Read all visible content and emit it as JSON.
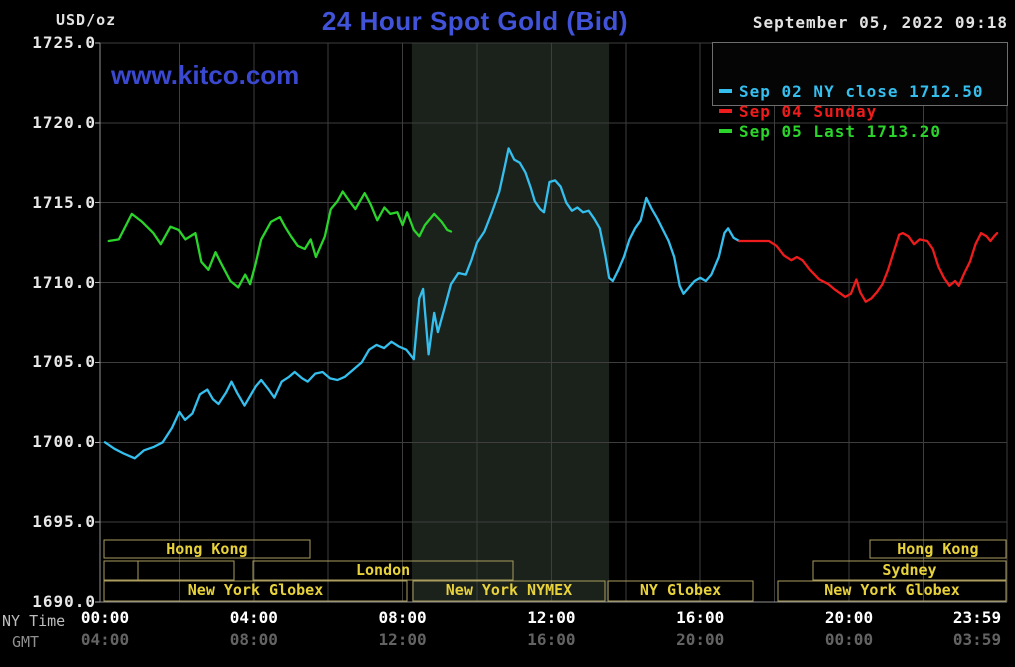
{
  "header": {
    "units_label": "USD/oz",
    "title": "24 Hour Spot Gold (Bid)",
    "watermark": "www.kitco.com",
    "datetime": "September 05, 2022 09:18"
  },
  "axes": {
    "ny_time_label": "NY Time",
    "gmt_label": "GMT"
  },
  "legend": {
    "items": [
      {
        "id": "sep02",
        "label": "Sep 02 NY close 1712.50",
        "color": "#35bfee"
      },
      {
        "id": "sep04",
        "label": "Sep 04 Sunday",
        "color": "#ee1c1c"
      },
      {
        "id": "sep05",
        "label": "Sep 05 Last 1713.20",
        "color": "#2bd42b"
      }
    ]
  },
  "chart_data": {
    "type": "line",
    "title": "24 Hour Spot Gold (Bid)",
    "ylabel": "USD/oz",
    "xlabel": "NY Time / GMT",
    "ylim": [
      1690,
      1725
    ],
    "xlim_hours": [
      0,
      24
    ],
    "grid": true,
    "legend_position": "top-right",
    "y_ticks": [
      1690,
      1695,
      1700,
      1705,
      1710,
      1715,
      1720,
      1725
    ],
    "x_ticks": [
      {
        "h": 0,
        "ny": "00:00",
        "gmt": "04:00"
      },
      {
        "h": 4,
        "ny": "04:00",
        "gmt": "08:00"
      },
      {
        "h": 8,
        "ny": "08:00",
        "gmt": "12:00"
      },
      {
        "h": 12,
        "ny": "12:00",
        "gmt": "16:00"
      },
      {
        "h": 16,
        "ny": "16:00",
        "gmt": "20:00"
      },
      {
        "h": 20,
        "ny": "20:00",
        "gmt": "00:00"
      },
      {
        "h": 23.983,
        "ny": "23:59",
        "gmt": "03:59"
      }
    ],
    "band_hours": [
      8.25,
      13.55
    ],
    "colors": {
      "grid": "#3e3e3e",
      "axis": "#909090",
      "band": "#1b211b",
      "session_border": "#aa9d5e",
      "session_text": "#e8d23c",
      "title_blue": "#4153d9"
    },
    "sessions": [
      {
        "row": 1,
        "label": "Hong Kong",
        "start": -0.03,
        "end": 5.51
      },
      {
        "row": 1,
        "label": "Hong Kong",
        "start": 20.56,
        "end": 24.22
      },
      {
        "row": 2,
        "label": "",
        "start": -0.03,
        "end": 0.89
      },
      {
        "row": 2,
        "label": "",
        "start": 0.89,
        "end": 3.47
      },
      {
        "row": 2,
        "label": "London",
        "start": 3.98,
        "end": 10.97
      },
      {
        "row": 2,
        "label": "Sydney",
        "start": 19.03,
        "end": 24.22
      },
      {
        "row": 3,
        "label": "New York Globex",
        "start": -0.03,
        "end": 8.12
      },
      {
        "row": 3,
        "label": "New York NYMEX",
        "start": 8.28,
        "end": 13.44
      },
      {
        "row": 3,
        "label": "NY Globex",
        "start": 13.52,
        "end": 17.42
      },
      {
        "row": 3,
        "label": "New York Globex",
        "start": 18.09,
        "end": 24.22
      }
    ],
    "series": [
      {
        "id": "sep02",
        "name": "Sep 02 NY close 1712.50",
        "color": "#35bfee",
        "points": [
          [
            0,
            1700.0
          ],
          [
            0.25,
            1699.6
          ],
          [
            0.5,
            1699.3
          ],
          [
            0.8,
            1699.0
          ],
          [
            1.05,
            1699.5
          ],
          [
            1.3,
            1699.7
          ],
          [
            1.55,
            1700.0
          ],
          [
            1.8,
            1700.9
          ],
          [
            2.0,
            1701.9
          ],
          [
            2.15,
            1701.4
          ],
          [
            2.35,
            1701.8
          ],
          [
            2.55,
            1703.0
          ],
          [
            2.75,
            1703.3
          ],
          [
            2.9,
            1702.7
          ],
          [
            3.05,
            1702.4
          ],
          [
            3.25,
            1703.1
          ],
          [
            3.4,
            1703.8
          ],
          [
            3.55,
            1703.1
          ],
          [
            3.75,
            1702.3
          ],
          [
            3.9,
            1702.9
          ],
          [
            4.05,
            1703.5
          ],
          [
            4.2,
            1703.9
          ],
          [
            4.4,
            1703.3
          ],
          [
            4.55,
            1702.8
          ],
          [
            4.75,
            1703.8
          ],
          [
            4.95,
            1704.1
          ],
          [
            5.1,
            1704.4
          ],
          [
            5.3,
            1704.0
          ],
          [
            5.45,
            1703.8
          ],
          [
            5.65,
            1704.3
          ],
          [
            5.85,
            1704.4
          ],
          [
            6.05,
            1704.0
          ],
          [
            6.25,
            1703.9
          ],
          [
            6.45,
            1704.1
          ],
          [
            6.6,
            1704.4
          ],
          [
            6.9,
            1705.0
          ],
          [
            7.1,
            1705.8
          ],
          [
            7.3,
            1706.1
          ],
          [
            7.5,
            1705.9
          ],
          [
            7.7,
            1706.3
          ],
          [
            7.9,
            1706.0
          ],
          [
            8.1,
            1705.8
          ],
          [
            8.3,
            1705.2
          ],
          [
            8.45,
            1709.0
          ],
          [
            8.55,
            1709.6
          ],
          [
            8.7,
            1705.5
          ],
          [
            8.85,
            1708.1
          ],
          [
            8.95,
            1706.9
          ],
          [
            9.15,
            1708.6
          ],
          [
            9.3,
            1709.9
          ],
          [
            9.5,
            1710.6
          ],
          [
            9.7,
            1710.5
          ],
          [
            9.85,
            1711.4
          ],
          [
            10.0,
            1712.5
          ],
          [
            10.2,
            1713.2
          ],
          [
            10.4,
            1714.4
          ],
          [
            10.6,
            1715.7
          ],
          [
            10.75,
            1717.3
          ],
          [
            10.85,
            1718.4
          ],
          [
            11.0,
            1717.7
          ],
          [
            11.15,
            1717.5
          ],
          [
            11.3,
            1716.9
          ],
          [
            11.45,
            1715.9
          ],
          [
            11.55,
            1715.1
          ],
          [
            11.7,
            1714.6
          ],
          [
            11.8,
            1714.4
          ],
          [
            11.95,
            1716.3
          ],
          [
            12.1,
            1716.4
          ],
          [
            12.25,
            1716.0
          ],
          [
            12.4,
            1715.0
          ],
          [
            12.55,
            1714.5
          ],
          [
            12.7,
            1714.7
          ],
          [
            12.85,
            1714.4
          ],
          [
            13.0,
            1714.5
          ],
          [
            13.15,
            1714.0
          ],
          [
            13.3,
            1713.4
          ],
          [
            13.45,
            1711.7
          ],
          [
            13.55,
            1710.3
          ],
          [
            13.65,
            1710.1
          ],
          [
            13.8,
            1710.8
          ],
          [
            13.95,
            1711.6
          ],
          [
            14.1,
            1712.7
          ],
          [
            14.25,
            1713.4
          ],
          [
            14.4,
            1713.9
          ],
          [
            14.55,
            1715.3
          ],
          [
            14.7,
            1714.6
          ],
          [
            14.85,
            1714.0
          ],
          [
            15.0,
            1713.3
          ],
          [
            15.15,
            1712.6
          ],
          [
            15.3,
            1711.6
          ],
          [
            15.45,
            1709.8
          ],
          [
            15.55,
            1709.3
          ],
          [
            15.7,
            1709.7
          ],
          [
            15.85,
            1710.1
          ],
          [
            16.0,
            1710.3
          ],
          [
            16.15,
            1710.1
          ],
          [
            16.3,
            1710.5
          ],
          [
            16.5,
            1711.6
          ],
          [
            16.65,
            1713.1
          ],
          [
            16.75,
            1713.4
          ],
          [
            16.9,
            1712.8
          ],
          [
            17.05,
            1712.6
          ]
        ]
      },
      {
        "id": "sep04",
        "name": "Sep 04 Sunday",
        "color": "#ee1c1c",
        "points": [
          [
            17.05,
            1712.6
          ],
          [
            17.85,
            1712.6
          ],
          [
            18.05,
            1712.3
          ],
          [
            18.25,
            1711.7
          ],
          [
            18.45,
            1711.4
          ],
          [
            18.6,
            1711.6
          ],
          [
            18.75,
            1711.4
          ],
          [
            18.95,
            1710.8
          ],
          [
            19.2,
            1710.2
          ],
          [
            19.45,
            1709.9
          ],
          [
            19.6,
            1709.6
          ],
          [
            19.9,
            1709.1
          ],
          [
            20.05,
            1709.3
          ],
          [
            20.2,
            1710.2
          ],
          [
            20.3,
            1709.4
          ],
          [
            20.45,
            1708.8
          ],
          [
            20.6,
            1709.0
          ],
          [
            20.75,
            1709.4
          ],
          [
            20.9,
            1709.9
          ],
          [
            21.05,
            1710.8
          ],
          [
            21.2,
            1711.9
          ],
          [
            21.35,
            1713.0
          ],
          [
            21.45,
            1713.1
          ],
          [
            21.6,
            1712.9
          ],
          [
            21.75,
            1712.4
          ],
          [
            21.9,
            1712.7
          ],
          [
            22.1,
            1712.6
          ],
          [
            22.25,
            1712.1
          ],
          [
            22.4,
            1711.0
          ],
          [
            22.55,
            1710.3
          ],
          [
            22.7,
            1709.8
          ],
          [
            22.85,
            1710.1
          ],
          [
            22.95,
            1709.8
          ],
          [
            23.1,
            1710.6
          ],
          [
            23.25,
            1711.3
          ],
          [
            23.4,
            1712.4
          ],
          [
            23.55,
            1713.1
          ],
          [
            23.7,
            1712.9
          ],
          [
            23.8,
            1712.6
          ],
          [
            23.9,
            1712.9
          ],
          [
            23.98,
            1713.1
          ]
        ]
      },
      {
        "id": "sep05",
        "name": "Sep 05 Last 1713.20",
        "color": "#2bd42b",
        "points": [
          [
            0.1,
            1712.6
          ],
          [
            0.37,
            1712.7
          ],
          [
            0.72,
            1714.3
          ],
          [
            1.0,
            1713.8
          ],
          [
            1.3,
            1713.1
          ],
          [
            1.5,
            1712.4
          ],
          [
            1.76,
            1713.5
          ],
          [
            1.98,
            1713.3
          ],
          [
            2.16,
            1712.7
          ],
          [
            2.43,
            1713.1
          ],
          [
            2.59,
            1711.3
          ],
          [
            2.78,
            1710.8
          ],
          [
            2.97,
            1711.9
          ],
          [
            3.1,
            1711.3
          ],
          [
            3.37,
            1710.1
          ],
          [
            3.58,
            1709.7
          ],
          [
            3.77,
            1710.5
          ],
          [
            3.9,
            1709.9
          ],
          [
            4.05,
            1711.2
          ],
          [
            4.2,
            1712.7
          ],
          [
            4.46,
            1713.8
          ],
          [
            4.7,
            1714.1
          ],
          [
            4.84,
            1713.5
          ],
          [
            5.0,
            1712.9
          ],
          [
            5.18,
            1712.3
          ],
          [
            5.37,
            1712.1
          ],
          [
            5.53,
            1712.7
          ],
          [
            5.67,
            1711.6
          ],
          [
            5.91,
            1712.9
          ],
          [
            6.07,
            1714.6
          ],
          [
            6.25,
            1715.1
          ],
          [
            6.39,
            1715.7
          ],
          [
            6.57,
            1715.1
          ],
          [
            6.73,
            1714.6
          ],
          [
            6.98,
            1715.6
          ],
          [
            7.14,
            1714.9
          ],
          [
            7.32,
            1713.9
          ],
          [
            7.51,
            1714.7
          ],
          [
            7.67,
            1714.3
          ],
          [
            7.86,
            1714.4
          ],
          [
            8.0,
            1713.6
          ],
          [
            8.12,
            1714.4
          ],
          [
            8.3,
            1713.3
          ],
          [
            8.45,
            1712.9
          ],
          [
            8.6,
            1713.6
          ],
          [
            8.85,
            1714.3
          ],
          [
            9.05,
            1713.8
          ],
          [
            9.2,
            1713.3
          ],
          [
            9.3,
            1713.2
          ]
        ]
      }
    ]
  }
}
